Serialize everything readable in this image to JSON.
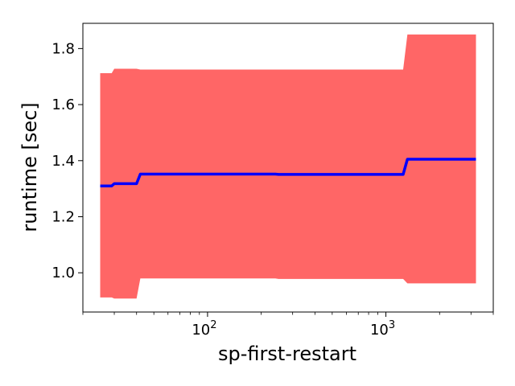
{
  "chart_data": {
    "type": "line",
    "xlabel": "sp-first-restart",
    "ylabel": "runtime [sec]",
    "xscale": "log",
    "xlim": [
      20,
      4000
    ],
    "ylim": [
      0.86,
      1.89
    ],
    "grid": false,
    "legend": "none",
    "colors": {
      "line": "#0000ff",
      "band": "#ff6666",
      "axes": "#000000"
    },
    "x_ticks": [
      {
        "value": 100,
        "base": "10",
        "exp": "2"
      },
      {
        "value": 1000,
        "base": "10",
        "exp": "3"
      }
    ],
    "y_ticks": [
      {
        "value": 1.0,
        "label": "1.0"
      },
      {
        "value": 1.2,
        "label": "1.2"
      },
      {
        "value": 1.4,
        "label": "1.4"
      },
      {
        "value": 1.6,
        "label": "1.6"
      },
      {
        "value": 1.8,
        "label": "1.8"
      }
    ],
    "series": [
      {
        "x": [
          25,
          29,
          30,
          40,
          42,
          100,
          240,
          250,
          1000,
          1250,
          1320,
          3200
        ],
        "y": [
          1.31,
          1.31,
          1.318,
          1.318,
          1.352,
          1.352,
          1.352,
          1.351,
          1.351,
          1.351,
          1.405,
          1.405
        ],
        "upper": [
          1.712,
          1.712,
          1.728,
          1.728,
          1.725,
          1.725,
          1.725,
          1.725,
          1.725,
          1.725,
          1.85,
          1.85
        ],
        "lower": [
          0.912,
          0.912,
          0.908,
          0.908,
          0.98,
          0.98,
          0.98,
          0.978,
          0.978,
          0.978,
          0.962,
          0.962
        ]
      }
    ]
  }
}
